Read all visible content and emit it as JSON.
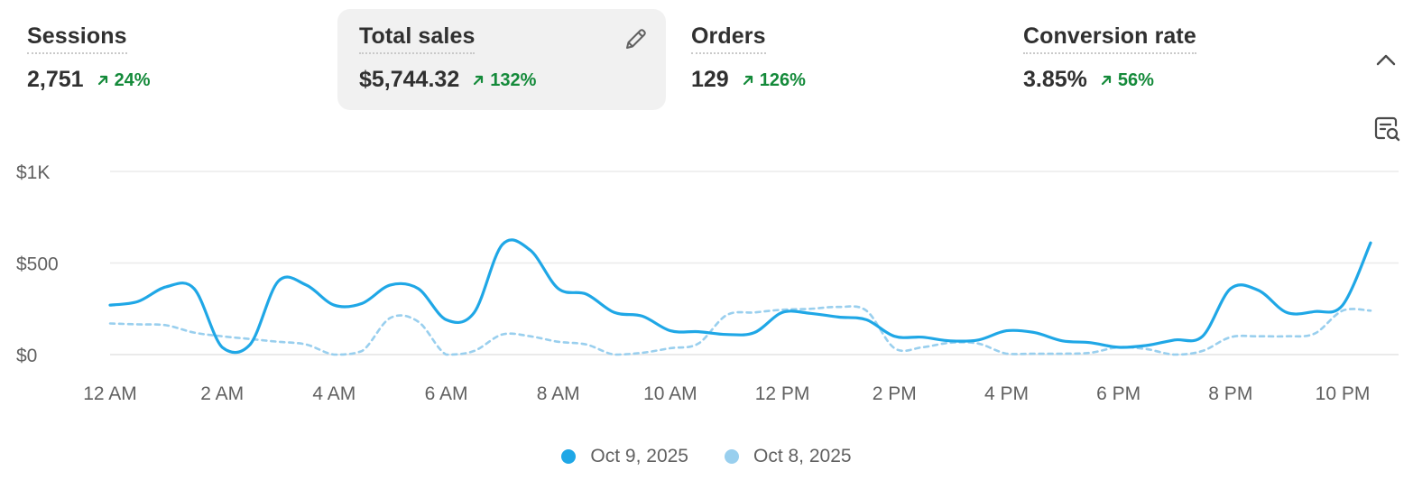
{
  "metrics": [
    {
      "title": "Sessions",
      "value": "2,751",
      "change": "24%",
      "selected": false
    },
    {
      "title": "Total sales",
      "value": "$5,744.32",
      "change": "132%",
      "selected": true
    },
    {
      "title": "Orders",
      "value": "129",
      "change": "126%",
      "selected": false
    },
    {
      "title": "Conversion rate",
      "value": "3.85%",
      "change": "56%",
      "selected": false
    }
  ],
  "icons": {
    "edit": "pencil-icon",
    "collapse": "chevron-up-icon",
    "report": "view-report-icon",
    "trend": "arrow-up-right-icon"
  },
  "colors": {
    "current_series": "#1fa7e6",
    "previous_series": "#99cfee",
    "positive_change": "#148a3a"
  },
  "chart_data": {
    "type": "line",
    "title": "",
    "xlabel": "",
    "ylabel": "",
    "ylim": [
      0,
      1000
    ],
    "yticks": [
      0,
      500,
      1000
    ],
    "ytick_labels": [
      "$0",
      "$500",
      "$1K"
    ],
    "xlim": [
      0,
      22.5
    ],
    "xticks": [
      0,
      2,
      4,
      6,
      8,
      10,
      12,
      14,
      16,
      18,
      20,
      22
    ],
    "xtick_labels": [
      "12 AM",
      "2 AM",
      "4 AM",
      "6 AM",
      "8 AM",
      "10 AM",
      "12 PM",
      "2 PM",
      "4 PM",
      "6 PM",
      "8 PM",
      "10 PM"
    ],
    "grid": true,
    "legend_position": "bottom-center",
    "series": [
      {
        "name": "Oct 9, 2025",
        "style": "solid",
        "x": [
          0,
          0.5,
          1,
          1.5,
          2,
          2.5,
          3,
          3.5,
          4,
          4.5,
          5,
          5.5,
          6,
          6.5,
          7,
          7.5,
          8,
          8.5,
          9,
          9.5,
          10,
          10.5,
          11,
          11.5,
          12,
          12.5,
          13,
          13.5,
          14,
          14.5,
          15,
          15.5,
          16,
          16.5,
          17,
          17.5,
          18,
          18.5,
          19,
          19.5,
          20,
          20.5,
          21,
          21.5,
          22,
          22.5
        ],
        "values": [
          270,
          290,
          370,
          360,
          40,
          55,
          400,
          380,
          270,
          280,
          380,
          360,
          190,
          230,
          600,
          570,
          360,
          330,
          230,
          210,
          130,
          125,
          110,
          120,
          230,
          225,
          205,
          190,
          100,
          95,
          75,
          80,
          130,
          120,
          75,
          65,
          40,
          50,
          80,
          100,
          360,
          350,
          230,
          235,
          270,
          610
        ]
      },
      {
        "name": "Oct 8, 2025",
        "style": "dashed",
        "x": [
          0,
          0.5,
          1,
          1.5,
          2,
          2.5,
          3,
          3.5,
          4,
          4.5,
          5,
          5.5,
          6,
          6.5,
          7,
          7.5,
          8,
          8.5,
          9,
          9.5,
          10,
          10.5,
          11,
          11.5,
          12,
          12.5,
          13,
          13.5,
          14,
          14.5,
          15,
          15.5,
          16,
          16.5,
          17,
          17.5,
          18,
          18.5,
          19,
          19.5,
          20,
          20.5,
          21,
          21.5,
          22,
          22.5
        ],
        "values": [
          170,
          165,
          160,
          120,
          100,
          85,
          70,
          55,
          0,
          20,
          200,
          180,
          0,
          20,
          110,
          100,
          70,
          55,
          0,
          10,
          35,
          60,
          215,
          230,
          245,
          250,
          260,
          240,
          35,
          40,
          65,
          60,
          5,
          5,
          5,
          10,
          40,
          30,
          0,
          20,
          95,
          100,
          100,
          115,
          240,
          240
        ]
      }
    ]
  }
}
